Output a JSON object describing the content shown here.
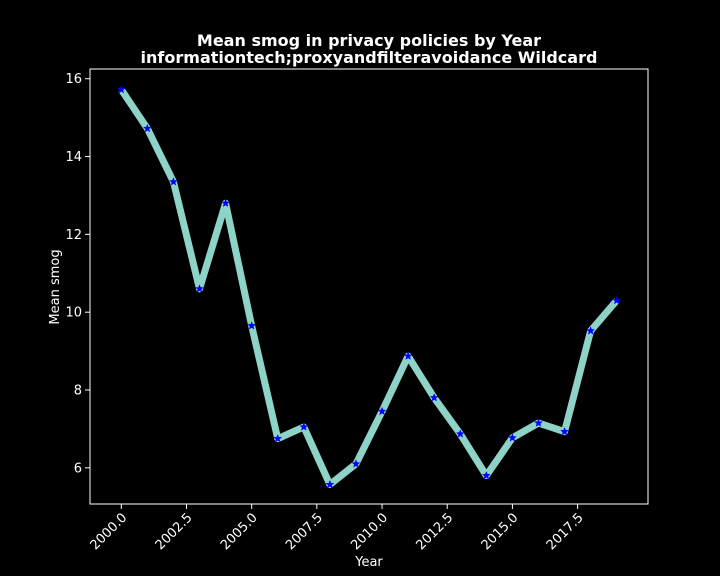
{
  "chart_data": {
    "type": "line",
    "title": "Mean smog in privacy policies by Year",
    "subtitle": "informationtech;proxyandfilteravoidance Wildcard",
    "xlabel": "Year",
    "ylabel": "Mean smog",
    "xlim": [
      1998.8,
      2020.2
    ],
    "ylim": [
      5.07,
      16.25
    ],
    "x_ticks": [
      2000.0,
      2002.5,
      2005.0,
      2007.5,
      2010.0,
      2012.5,
      2015.0,
      2017.5
    ],
    "x_tick_labels": [
      "2000.0",
      "2002.5",
      "2005.0",
      "2007.5",
      "2010.0",
      "2012.5",
      "2015.0",
      "2017.5"
    ],
    "y_ticks": [
      6,
      8,
      10,
      12,
      14,
      16
    ],
    "y_tick_labels": [
      "6",
      "8",
      "10",
      "12",
      "14",
      "16"
    ],
    "grid": false,
    "background": "#000000",
    "line_color": "#8dd3c7",
    "marker_color": "#0000ff",
    "marker": "star",
    "series": [
      {
        "x": [
          2000,
          2001,
          2002,
          2003,
          2004,
          2005,
          2006,
          2007,
          2008,
          2009,
          2010,
          2011,
          2012,
          2013,
          2014,
          2015,
          2016,
          2017,
          2018,
          2019
        ],
        "values": [
          15.72,
          14.72,
          13.35,
          10.6,
          12.8,
          9.65,
          6.75,
          7.05,
          5.57,
          6.1,
          7.45,
          8.87,
          7.8,
          6.87,
          5.8,
          6.77,
          7.15,
          6.93,
          9.52,
          10.3
        ]
      }
    ]
  }
}
